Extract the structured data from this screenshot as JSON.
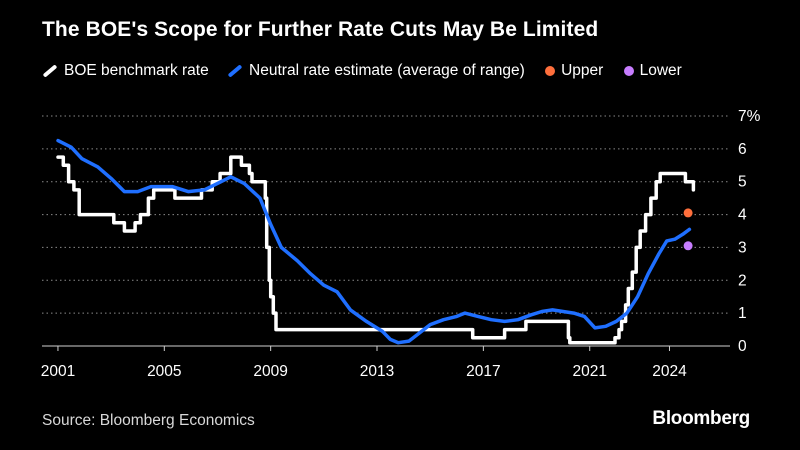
{
  "chart_data": {
    "type": "line",
    "title": "The BOE's Scope for Further Rate Cuts May Be Limited",
    "xlabel": "",
    "ylabel": "",
    "xlim": [
      2000.4,
      2025.9
    ],
    "ylim": [
      0,
      7
    ],
    "y_unit_suffix": "%",
    "x_ticks": [
      2001,
      2005,
      2009,
      2013,
      2017,
      2021,
      2024
    ],
    "y_ticks": [
      0,
      1,
      2,
      3,
      4,
      5,
      6,
      7
    ],
    "y_tick_labels": [
      "0",
      "1",
      "2",
      "3",
      "4",
      "5",
      "6",
      "7%"
    ],
    "grid": "horizontal dotted",
    "series": [
      {
        "name": "BOE benchmark rate",
        "color": "#ffffff",
        "step": true,
        "points": [
          [
            2001.0,
            5.75
          ],
          [
            2001.2,
            5.5
          ],
          [
            2001.4,
            5.0
          ],
          [
            2001.6,
            4.75
          ],
          [
            2001.8,
            4.0
          ],
          [
            2003.1,
            3.75
          ],
          [
            2003.5,
            3.5
          ],
          [
            2003.9,
            3.75
          ],
          [
            2004.1,
            4.0
          ],
          [
            2004.4,
            4.5
          ],
          [
            2004.6,
            4.75
          ],
          [
            2005.4,
            4.5
          ],
          [
            2006.4,
            4.75
          ],
          [
            2006.8,
            5.0
          ],
          [
            2007.1,
            5.25
          ],
          [
            2007.5,
            5.75
          ],
          [
            2007.9,
            5.5
          ],
          [
            2008.2,
            5.25
          ],
          [
            2008.3,
            5.0
          ],
          [
            2008.8,
            4.5
          ],
          [
            2008.85,
            3.0
          ],
          [
            2008.95,
            2.0
          ],
          [
            2009.0,
            1.5
          ],
          [
            2009.1,
            1.0
          ],
          [
            2009.2,
            0.5
          ],
          [
            2016.6,
            0.25
          ],
          [
            2017.8,
            0.5
          ],
          [
            2018.6,
            0.75
          ],
          [
            2020.2,
            0.25
          ],
          [
            2020.25,
            0.1
          ],
          [
            2021.95,
            0.25
          ],
          [
            2022.1,
            0.5
          ],
          [
            2022.2,
            0.75
          ],
          [
            2022.35,
            1.25
          ],
          [
            2022.45,
            1.75
          ],
          [
            2022.6,
            2.25
          ],
          [
            2022.75,
            3.0
          ],
          [
            2022.9,
            3.5
          ],
          [
            2023.1,
            4.0
          ],
          [
            2023.3,
            4.5
          ],
          [
            2023.5,
            5.0
          ],
          [
            2023.65,
            5.25
          ],
          [
            2024.6,
            5.0
          ],
          [
            2024.9,
            4.75
          ]
        ]
      },
      {
        "name": "Neutral rate estimate (average of range)",
        "color": "#1f6fff",
        "step": false,
        "points": [
          [
            2001.0,
            6.25
          ],
          [
            2001.5,
            6.05
          ],
          [
            2001.9,
            5.7
          ],
          [
            2002.5,
            5.45
          ],
          [
            2003.0,
            5.1
          ],
          [
            2003.5,
            4.7
          ],
          [
            2004.0,
            4.7
          ],
          [
            2004.5,
            4.85
          ],
          [
            2005.3,
            4.85
          ],
          [
            2005.9,
            4.7
          ],
          [
            2006.5,
            4.75
          ],
          [
            2007.0,
            4.95
          ],
          [
            2007.5,
            5.15
          ],
          [
            2008.0,
            4.95
          ],
          [
            2008.6,
            4.5
          ],
          [
            2009.0,
            3.7
          ],
          [
            2009.4,
            3.0
          ],
          [
            2010.0,
            2.6
          ],
          [
            2010.5,
            2.2
          ],
          [
            2011.0,
            1.85
          ],
          [
            2011.5,
            1.65
          ],
          [
            2012.0,
            1.1
          ],
          [
            2012.6,
            0.75
          ],
          [
            2013.2,
            0.45
          ],
          [
            2013.5,
            0.2
          ],
          [
            2013.8,
            0.1
          ],
          [
            2014.2,
            0.15
          ],
          [
            2014.6,
            0.4
          ],
          [
            2015.0,
            0.65
          ],
          [
            2015.5,
            0.8
          ],
          [
            2016.0,
            0.9
          ],
          [
            2016.3,
            1.0
          ],
          [
            2016.8,
            0.9
          ],
          [
            2017.3,
            0.8
          ],
          [
            2017.8,
            0.75
          ],
          [
            2018.3,
            0.8
          ],
          [
            2018.8,
            0.95
          ],
          [
            2019.2,
            1.05
          ],
          [
            2019.6,
            1.1
          ],
          [
            2020.0,
            1.05
          ],
          [
            2020.4,
            1.0
          ],
          [
            2020.8,
            0.9
          ],
          [
            2021.2,
            0.55
          ],
          [
            2021.6,
            0.6
          ],
          [
            2022.0,
            0.75
          ],
          [
            2022.4,
            1.0
          ],
          [
            2022.8,
            1.5
          ],
          [
            2023.2,
            2.2
          ],
          [
            2023.6,
            2.8
          ],
          [
            2023.9,
            3.2
          ],
          [
            2024.2,
            3.25
          ],
          [
            2024.5,
            3.4
          ],
          [
            2024.75,
            3.55
          ]
        ]
      },
      {
        "name": "Upper",
        "color": "#ff6f3c",
        "type": "scatter",
        "points": [
          [
            2024.7,
            4.05
          ]
        ]
      },
      {
        "name": "Lower",
        "color": "#c77dff",
        "type": "scatter",
        "points": [
          [
            2024.7,
            3.05
          ]
        ]
      }
    ]
  },
  "source": "Source: Bloomberg Economics",
  "brand": "Bloomberg"
}
